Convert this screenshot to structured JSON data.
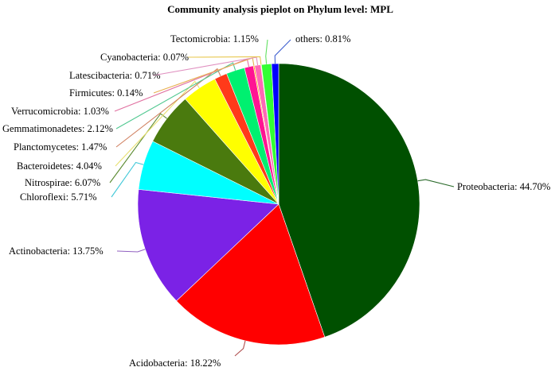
{
  "chart_data": {
    "type": "pie",
    "title": "Community analysis pieplot on Phylum level: MPL",
    "slices": [
      {
        "name": "Proteobacteria",
        "value": 44.7,
        "label": "Proteobacteria: 44.70%",
        "color": "#005000"
      },
      {
        "name": "Acidobacteria",
        "value": 18.22,
        "label": "Acidobacteria: 18.22%",
        "color": "#ff0000"
      },
      {
        "name": "Actinobacteria",
        "value": 13.75,
        "label": "Actinobacteria: 13.75%",
        "color": "#7b22e6"
      },
      {
        "name": "Chloroflexi",
        "value": 5.71,
        "label": "Chloroflexi: 5.71%",
        "color": "#00ffff"
      },
      {
        "name": "Nitrospirae",
        "value": 6.07,
        "label": "Nitrospirae: 6.07%",
        "color": "#4a7a0e"
      },
      {
        "name": "Bacteroidetes",
        "value": 4.04,
        "label": "Bacteroidetes: 4.04%",
        "color": "#ffff00"
      },
      {
        "name": "Planctomycetes",
        "value": 1.47,
        "label": "Planctomycetes: 1.47%",
        "color": "#ff3a1a"
      },
      {
        "name": "Gemmatimonadetes",
        "value": 2.12,
        "label": "Gemmatimonadetes: 2.12%",
        "color": "#00f070"
      },
      {
        "name": "Verrucomicrobia",
        "value": 1.03,
        "label": "Verrucomicrobia: 1.03%",
        "color": "#ff1493"
      },
      {
        "name": "Firmicutes",
        "value": 0.14,
        "label": "Firmicutes: 0.14%",
        "color": "#ffa500"
      },
      {
        "name": "Latescibacteria",
        "value": 0.71,
        "label": "Latescibacteria: 0.71%",
        "color": "#ff69b4"
      },
      {
        "name": "Cyanobacteria",
        "value": 0.07,
        "label": "Cyanobacteria: 0.07%",
        "color": "#ffd700"
      },
      {
        "name": "Tectomicrobia",
        "value": 1.15,
        "label": "Tectomicrobia: 1.15%",
        "color": "#33ff33"
      },
      {
        "name": "others",
        "value": 0.81,
        "label": "others: 0.81%",
        "color": "#0000ff"
      }
    ]
  }
}
